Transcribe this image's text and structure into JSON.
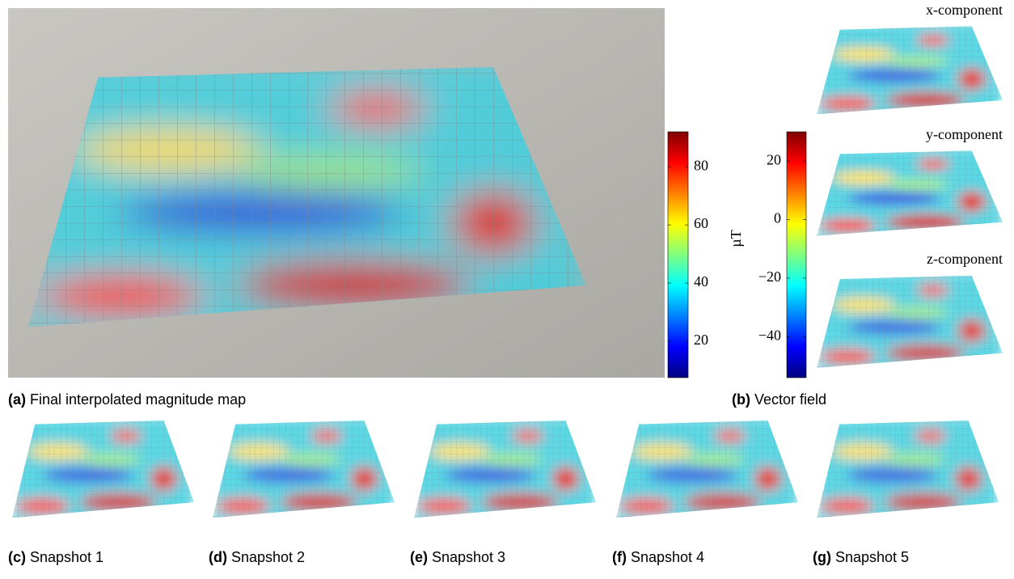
{
  "panels": {
    "magnitude_caption": {
      "label": "(a)",
      "text": "Final interpolated magnitude map"
    },
    "vector_caption": {
      "label": "(b)",
      "text": "Vector field"
    },
    "component_titles": [
      "x-component",
      "y-component",
      "z-component"
    ],
    "unit": "µT",
    "snapshots": [
      {
        "label": "(c)",
        "text": "Snapshot 1"
      },
      {
        "label": "(d)",
        "text": "Snapshot 2"
      },
      {
        "label": "(e)",
        "text": "Snapshot 3"
      },
      {
        "label": "(f)",
        "text": "Snapshot 4"
      },
      {
        "label": "(g)",
        "text": "Snapshot 5"
      }
    ]
  },
  "colorbars": [
    {
      "lim": [
        7.5,
        92
      ],
      "ticks": [
        20,
        40,
        60,
        80
      ]
    },
    {
      "lim": [
        -54,
        30
      ],
      "ticks": [
        {
          "value": -40,
          "label": "−40"
        },
        {
          "value": -20,
          "label": "−20"
        },
        0,
        20
      ]
    }
  ]
}
